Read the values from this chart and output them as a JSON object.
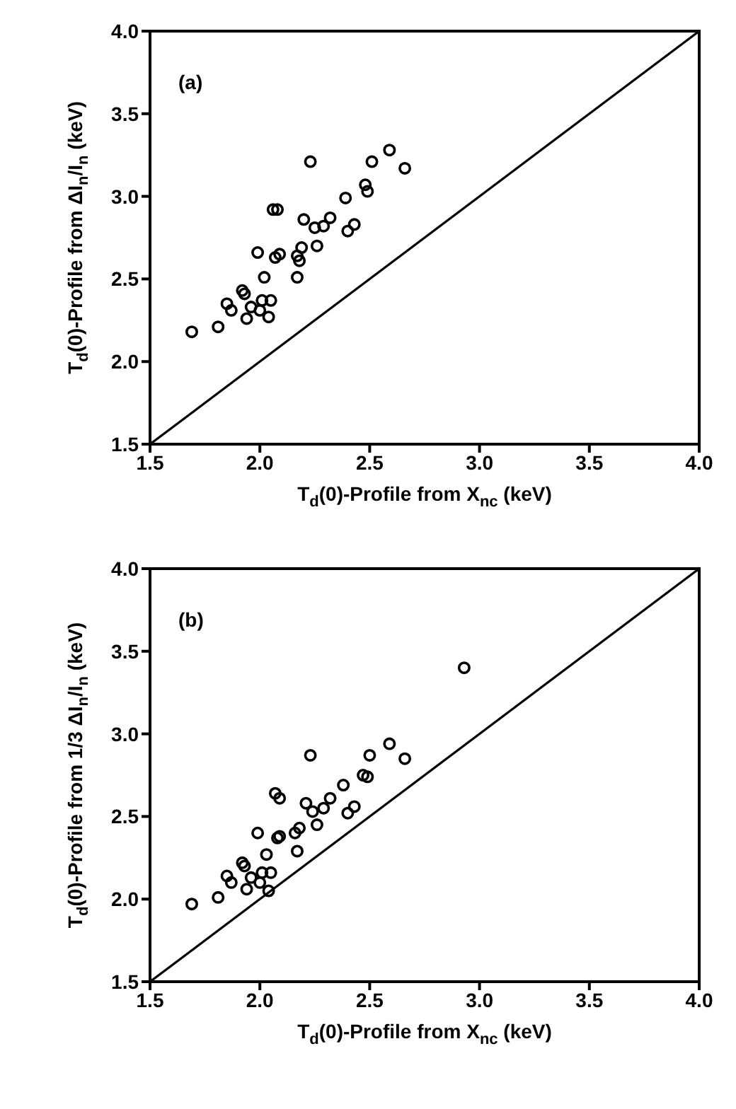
{
  "chart_data": [
    {
      "type": "scatter",
      "xlabel": "T$_{d}$(0)-Profile from X$_{nc}$ (keV)",
      "ylabel": "T$_{d}$(0)-Profile from ΔI$_{n}$/I$_{n}$ (keV)",
      "annotations": [
        "(a)"
      ],
      "xlim": [
        1.5,
        4.0
      ],
      "ylim": [
        1.5,
        4.0
      ],
      "xticks": [
        1.5,
        {
          "value": 2,
          "label": "2.0"
        },
        2.5,
        {
          "value": 3,
          "label": "3.0"
        },
        3.5,
        {
          "value": 4,
          "label": "4.0"
        }
      ],
      "yticks": [
        1.5,
        {
          "value": 2,
          "label": "2.0"
        },
        2.5,
        {
          "value": 3,
          "label": "3.0"
        },
        3.5,
        {
          "value": 4,
          "label": "4.0"
        }
      ],
      "grid": false,
      "legend": false,
      "marker": "circle",
      "series": [
        {
          "type": "scatter",
          "color": "#000000",
          "x": [
            1.69,
            1.81,
            1.85,
            1.87,
            1.92,
            1.93,
            1.94,
            1.96,
            1.99,
            2.0,
            2.01,
            2.02,
            2.04,
            2.05,
            2.06,
            2.08,
            2.07,
            2.09,
            2.17,
            2.17,
            2.18,
            2.19,
            2.2,
            2.23,
            2.25,
            2.26,
            2.29,
            2.32,
            2.39,
            2.4,
            2.43,
            2.48,
            2.49,
            2.51,
            2.59,
            2.66
          ],
          "values": [
            2.18,
            2.21,
            2.35,
            2.31,
            2.43,
            2.41,
            2.26,
            2.33,
            2.66,
            2.31,
            2.37,
            2.51,
            2.27,
            2.37,
            2.92,
            2.92,
            2.63,
            2.65,
            2.51,
            2.64,
            2.61,
            2.69,
            2.86,
            3.21,
            2.81,
            2.7,
            2.82,
            2.87,
            2.99,
            2.79,
            2.83,
            3.07,
            3.03,
            3.21,
            3.28,
            3.17
          ]
        },
        {
          "type": "line",
          "color": "#000000",
          "marker": "none",
          "x": [
            1.5,
            4.0
          ],
          "values": [
            1.5,
            4.0
          ]
        }
      ]
    },
    {
      "type": "scatter",
      "xlabel": "T$_{d}$(0)-Profile from X$_{nc}$ (keV)",
      "ylabel": "T$_{d}$(0)-Profile from 1/3 ΔI$_{n}$/I$_{n}$ (keV)",
      "annotations": [
        "(b)"
      ],
      "xlim": [
        1.5,
        4.0
      ],
      "ylim": [
        1.5,
        4.0
      ],
      "xticks": [
        1.5,
        {
          "value": 2,
          "label": "2.0"
        },
        2.5,
        {
          "value": 3,
          "label": "3.0"
        },
        3.5,
        {
          "value": 4,
          "label": "4.0"
        }
      ],
      "yticks": [
        1.5,
        {
          "value": 2,
          "label": "2.0"
        },
        2.5,
        {
          "value": 3,
          "label": "3.0"
        },
        3.5,
        {
          "value": 4,
          "label": "4.0"
        }
      ],
      "grid": false,
      "legend": false,
      "marker": "circle",
      "series": [
        {
          "type": "scatter",
          "color": "#000000",
          "x": [
            1.69,
            1.81,
            1.85,
            1.87,
            1.92,
            1.93,
            1.94,
            1.96,
            1.99,
            2.0,
            2.01,
            2.03,
            2.04,
            2.05,
            2.07,
            2.09,
            2.08,
            2.09,
            2.17,
            2.16,
            2.18,
            2.21,
            2.23,
            2.24,
            2.26,
            2.29,
            2.32,
            2.38,
            2.4,
            2.43,
            2.47,
            2.49,
            2.5,
            2.59,
            2.66,
            2.93
          ],
          "values": [
            1.97,
            2.01,
            2.14,
            2.1,
            2.22,
            2.2,
            2.06,
            2.13,
            2.4,
            2.1,
            2.16,
            2.27,
            2.05,
            2.16,
            2.64,
            2.61,
            2.37,
            2.38,
            2.29,
            2.4,
            2.43,
            2.58,
            2.87,
            2.53,
            2.45,
            2.55,
            2.61,
            2.69,
            2.52,
            2.56,
            2.75,
            2.74,
            2.87,
            2.94,
            2.85,
            3.4
          ]
        },
        {
          "type": "line",
          "color": "#000000",
          "marker": "none",
          "x": [
            1.5,
            4.0
          ],
          "values": [
            1.5,
            4.0
          ]
        }
      ]
    }
  ]
}
